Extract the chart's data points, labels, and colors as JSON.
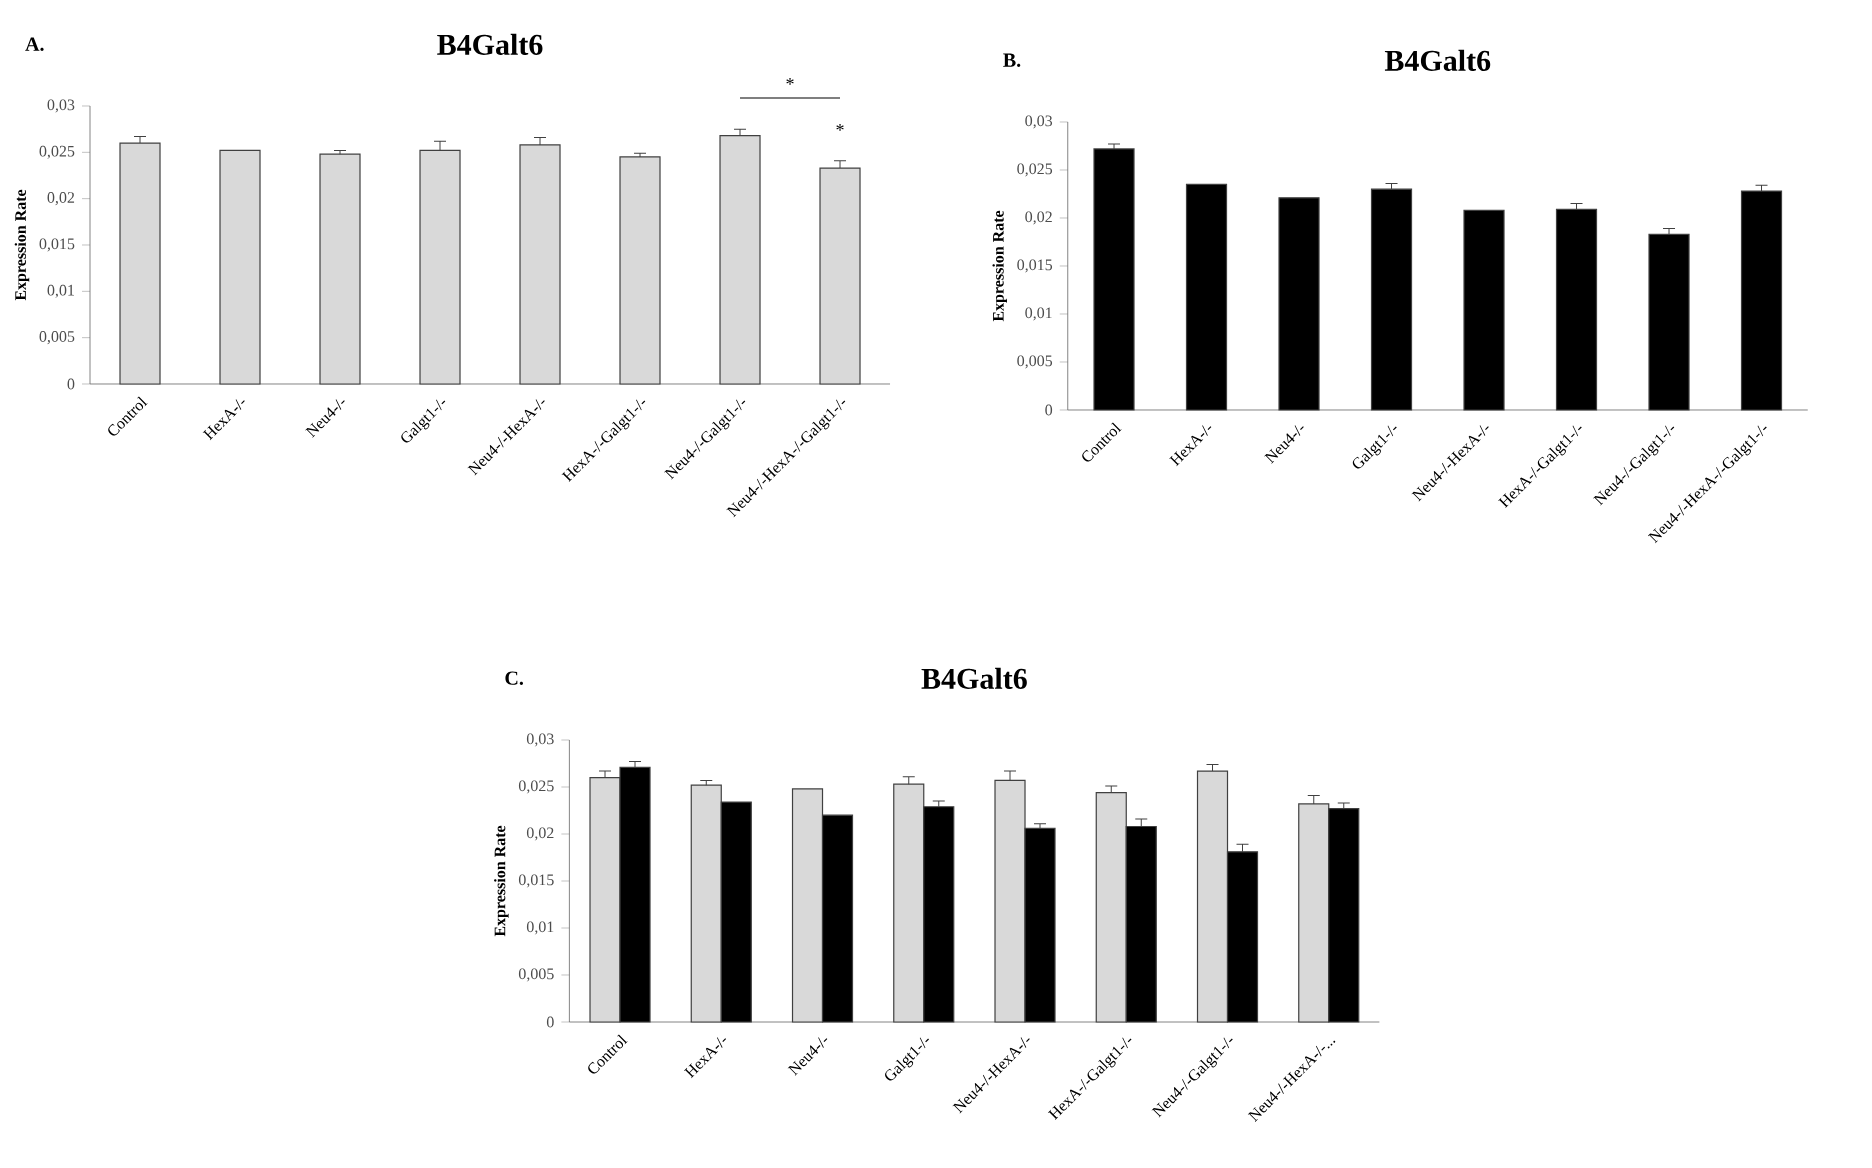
{
  "chart_data": [
    {
      "type": "bar",
      "title": "B4Galt6",
      "ylabel": "Expression Rate",
      "categories": [
        "Control",
        "HexA-/-",
        "Neu4-/-",
        "Galgt1-/-",
        "Neu4-/-HexA-/-",
        "HexA-/-Galgt1-/-",
        "Neu4-/-Galgt1-/-",
        "Neu4-/-HexA-/-Galgt1-/-"
      ],
      "values": [
        0.026,
        0.0252,
        0.0248,
        0.0252,
        0.0258,
        0.0245,
        0.0268,
        0.0233
      ],
      "errors": [
        0.0007,
        null,
        0.0004,
        0.001,
        0.0008,
        0.0004,
        0.0007,
        0.0008
      ],
      "color": "#d9d9d9",
      "ylim": [
        0,
        0.03
      ],
      "yticks": [
        {
          "value": 0,
          "label": "0"
        },
        {
          "value": 0.005,
          "label": "0,005"
        },
        {
          "value": 0.01,
          "label": "0,01"
        },
        {
          "value": 0.015,
          "label": "0,015"
        },
        {
          "value": 0.02,
          "label": "0,02"
        },
        {
          "value": 0.025,
          "label": "0,025"
        },
        {
          "value": 0.03,
          "label": "0,03"
        }
      ],
      "annotations": [
        "A.",
        "*",
        "*"
      ]
    },
    {
      "type": "bar",
      "title": "B4Galt6",
      "ylabel": "Expression Rate",
      "categories": [
        "Control",
        "HexA-/-",
        "Neu4-/-",
        "Galgt1-/-",
        "Neu4-/-HexA-/-",
        "HexA-/-Galgt1-/-",
        "Neu4-/-Galgt1-/-",
        "Neu4-/-HexA-/-Galgt1-/-"
      ],
      "values": [
        0.0272,
        0.0235,
        0.0221,
        0.023,
        0.0208,
        0.0209,
        0.0183,
        0.0228
      ],
      "errors": [
        0.0005,
        null,
        null,
        0.0006,
        null,
        0.0006,
        0.0006,
        0.0006
      ],
      "color": "#000000",
      "ylim": [
        0,
        0.03
      ],
      "yticks": [
        {
          "value": 0,
          "label": "0"
        },
        {
          "value": 0.005,
          "label": "0,005"
        },
        {
          "value": 0.01,
          "label": "0,01"
        },
        {
          "value": 0.015,
          "label": "0,015"
        },
        {
          "value": 0.02,
          "label": "0,02"
        },
        {
          "value": 0.025,
          "label": "0,025"
        },
        {
          "value": 0.03,
          "label": "0,03"
        }
      ],
      "annotations": [
        "B."
      ]
    },
    {
      "type": "bar",
      "title": "B4Galt6",
      "ylabel": "Expression Rate",
      "categories": [
        "Control",
        "HexA-/-",
        "Neu4-/-",
        "Galgt1-/-",
        "Neu4-/-HexA-/-",
        "HexA-/-Galgt1-/-",
        "Neu4-/-Galgt1-/-",
        "Neu4-/-HexA-/-..."
      ],
      "series": [
        {
          "color": "#d9d9d9",
          "values": [
            0.026,
            0.0252,
            0.0248,
            0.0253,
            0.0257,
            0.0244,
            0.0267,
            0.0232
          ],
          "errors": [
            0.0007,
            0.0005,
            null,
            0.0008,
            0.001,
            0.0007,
            0.0007,
            0.0009
          ]
        },
        {
          "color": "#000000",
          "values": [
            0.0271,
            0.0234,
            0.022,
            0.0229,
            0.0206,
            0.0208,
            0.0181,
            0.0227
          ],
          "errors": [
            0.0006,
            null,
            null,
            0.0006,
            0.0005,
            0.0008,
            0.0008,
            0.0006
          ]
        }
      ],
      "ylim": [
        0,
        0.03
      ],
      "yticks": [
        {
          "value": 0,
          "label": "0"
        },
        {
          "value": 0.005,
          "label": "0,005"
        },
        {
          "value": 0.01,
          "label": "0,01"
        },
        {
          "value": 0.015,
          "label": "0,015"
        },
        {
          "value": 0.02,
          "label": "0,02"
        },
        {
          "value": 0.025,
          "label": "0,025"
        },
        {
          "value": 0.03,
          "label": "0,03"
        }
      ],
      "annotations": [
        "C."
      ]
    }
  ]
}
